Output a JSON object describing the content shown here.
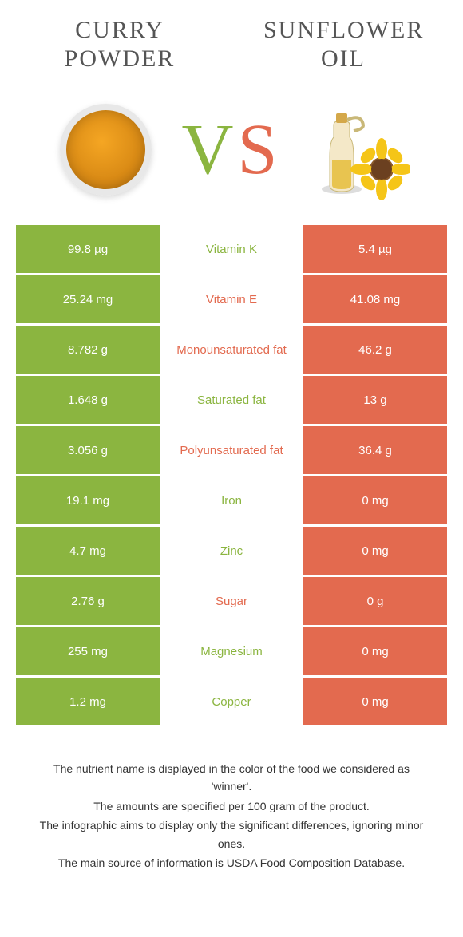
{
  "products": {
    "left": {
      "title": "Curry Powder"
    },
    "right": {
      "title": "Sunflower Oil"
    }
  },
  "vs": {
    "v": "V",
    "s": "S"
  },
  "colors": {
    "green": "#8bb540",
    "orange": "#e36a4f",
    "white": "#ffffff"
  },
  "rows": [
    {
      "left": "99.8 µg",
      "label": "Vitamin K",
      "right": "5.4 µg",
      "winner": "green"
    },
    {
      "left": "25.24 mg",
      "label": "Vitamin E",
      "right": "41.08 mg",
      "winner": "orange"
    },
    {
      "left": "8.782 g",
      "label": "Monounsaturated fat",
      "right": "46.2 g",
      "winner": "orange"
    },
    {
      "left": "1.648 g",
      "label": "Saturated fat",
      "right": "13 g",
      "winner": "green"
    },
    {
      "left": "3.056 g",
      "label": "Polyunsaturated fat",
      "right": "36.4 g",
      "winner": "orange"
    },
    {
      "left": "19.1 mg",
      "label": "Iron",
      "right": "0 mg",
      "winner": "green"
    },
    {
      "left": "4.7 mg",
      "label": "Zinc",
      "right": "0 mg",
      "winner": "green"
    },
    {
      "left": "2.76 g",
      "label": "Sugar",
      "right": "0 g",
      "winner": "orange"
    },
    {
      "left": "255 mg",
      "label": "Magnesium",
      "right": "0 mg",
      "winner": "green"
    },
    {
      "left": "1.2 mg",
      "label": "Copper",
      "right": "0 mg",
      "winner": "green"
    }
  ],
  "footer": {
    "line1": "The nutrient name is displayed in the color of the food we considered as 'winner'.",
    "line2": "The amounts are specified per 100 gram of the product.",
    "line3": "The infographic aims to display only the significant differences, ignoring minor ones.",
    "line4": "The main source of information is USDA Food Composition Database."
  }
}
